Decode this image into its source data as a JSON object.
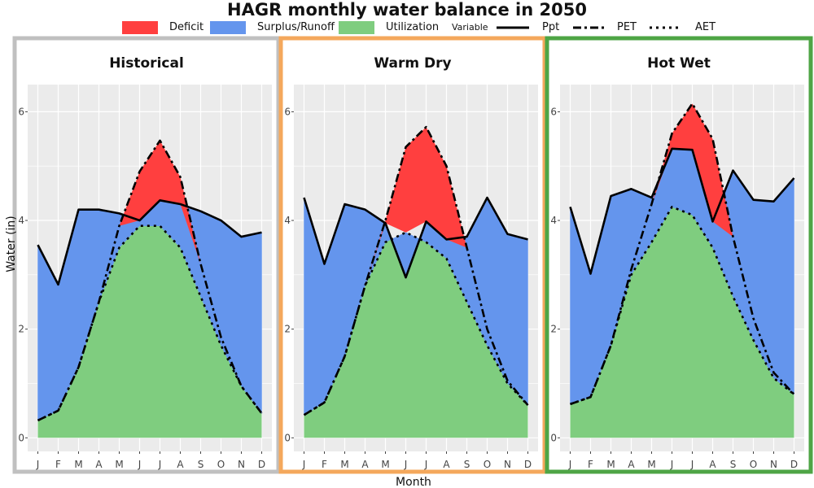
{
  "chart_data": {
    "type": "area",
    "title": "HAGR monthly water balance in 2050",
    "xlabel": "Month",
    "ylabel": "Water (in)",
    "ylim": [
      -0.25,
      6.5
    ],
    "yticks": [
      0,
      2,
      4,
      6
    ],
    "grid": true,
    "legend": {
      "position": "top",
      "fill_title": "",
      "fill_entries": [
        {
          "name": "Deficit",
          "color": "#ff3f3f"
        },
        {
          "name": "Surplus/Runoff",
          "color": "#6495ed"
        },
        {
          "name": "Utilization",
          "color": "#7fcd7f"
        }
      ],
      "line_title": "Variable",
      "line_entries": [
        {
          "name": "Ppt",
          "style": "solid"
        },
        {
          "name": "PET",
          "style": "dashdot"
        },
        {
          "name": "AET",
          "style": "dotted"
        }
      ]
    },
    "categories": [
      "J",
      "F",
      "M",
      "A",
      "M",
      "J",
      "J",
      "A",
      "S",
      "O",
      "N",
      "D"
    ],
    "panels": [
      {
        "title": "Historical",
        "border_color": "#c0c0c0",
        "series": [
          {
            "name": "Ppt",
            "values": [
              3.55,
              2.82,
              4.2,
              4.2,
              4.13,
              4.0,
              4.37,
              4.3,
              4.17,
              4.0,
              3.7,
              3.78
            ]
          },
          {
            "name": "PET",
            "values": [
              0.32,
              0.5,
              1.3,
              2.5,
              3.9,
              4.9,
              5.47,
              4.8,
              3.2,
              1.85,
              0.95,
              0.45
            ]
          },
          {
            "name": "AET",
            "values": [
              0.32,
              0.5,
              1.3,
              2.5,
              3.5,
              3.9,
              3.9,
              3.5,
              2.6,
              1.7,
              0.95,
              0.45
            ]
          }
        ]
      },
      {
        "title": "Warm Dry",
        "border_color": "#f4a85c",
        "series": [
          {
            "name": "Ppt",
            "values": [
              4.42,
              3.2,
              4.3,
              4.2,
              3.95,
              2.95,
              3.98,
              3.65,
              3.7,
              4.42,
              3.75,
              3.65
            ]
          },
          {
            "name": "PET",
            "values": [
              0.42,
              0.65,
              1.5,
              2.8,
              4.0,
              5.35,
              5.72,
              5.0,
              3.5,
              2.0,
              1.05,
              0.6
            ]
          },
          {
            "name": "AET",
            "values": [
              0.42,
              0.65,
              1.5,
              2.8,
              3.6,
              3.78,
              3.6,
              3.3,
              2.5,
              1.7,
              1.0,
              0.6
            ]
          }
        ]
      },
      {
        "title": "Hot Wet",
        "border_color": "#4ea545",
        "series": [
          {
            "name": "Ppt",
            "values": [
              4.25,
              3.02,
              4.45,
              4.58,
              4.42,
              5.32,
              5.3,
              3.98,
              4.92,
              4.38,
              4.35,
              4.78
            ]
          },
          {
            "name": "PET",
            "values": [
              0.62,
              0.75,
              1.7,
              3.1,
              4.3,
              5.6,
              6.15,
              5.5,
              3.7,
              2.2,
              1.2,
              0.8
            ]
          },
          {
            "name": "AET",
            "values": [
              0.62,
              0.75,
              1.7,
              3.0,
              3.6,
              4.25,
              4.1,
              3.5,
              2.6,
              1.8,
              1.1,
              0.8
            ]
          }
        ]
      }
    ]
  }
}
